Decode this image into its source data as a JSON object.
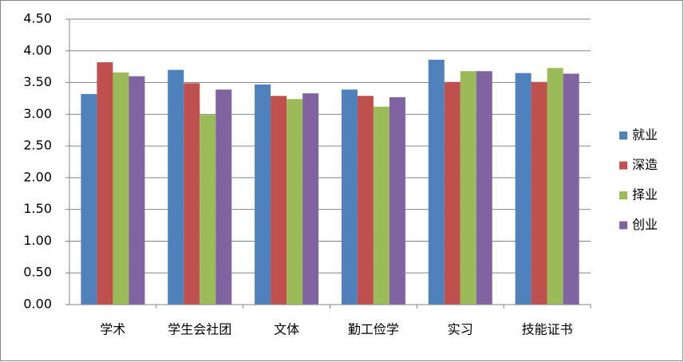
{
  "chart_data": {
    "type": "bar",
    "categories": [
      "学术",
      "学生会社团",
      "文体",
      "勤工俭学",
      "实习",
      "技能证书"
    ],
    "series": [
      {
        "name": "就业",
        "color": "#4f81bd",
        "values": [
          3.32,
          3.7,
          3.47,
          3.39,
          3.86,
          3.65
        ]
      },
      {
        "name": "深造",
        "color": "#c0504d",
        "values": [
          3.82,
          3.49,
          3.29,
          3.29,
          3.51,
          3.51
        ]
      },
      {
        "name": "择业",
        "color": "#9bbb59",
        "values": [
          3.66,
          2.99,
          3.24,
          3.12,
          3.68,
          3.73
        ]
      },
      {
        "name": "创业",
        "color": "#8064a2",
        "values": [
          3.6,
          3.39,
          3.33,
          3.27,
          3.68,
          3.64
        ]
      }
    ],
    "ylim": [
      0,
      4.5
    ],
    "yticks": [
      {
        "value": 0,
        "label": "0.00"
      },
      {
        "value": 0.5,
        "label": "0.50"
      },
      {
        "value": 1,
        "label": "1.00"
      },
      {
        "value": 1.5,
        "label": "1.50"
      },
      {
        "value": 2,
        "label": "2.00"
      },
      {
        "value": 2.5,
        "label": "2.50"
      },
      {
        "value": 3,
        "label": "3.00"
      },
      {
        "value": 3.5,
        "label": "3.50"
      },
      {
        "value": 4,
        "label": "4.00"
      },
      {
        "value": 4.5,
        "label": "4.50"
      }
    ],
    "grid": true,
    "legend": "right"
  }
}
